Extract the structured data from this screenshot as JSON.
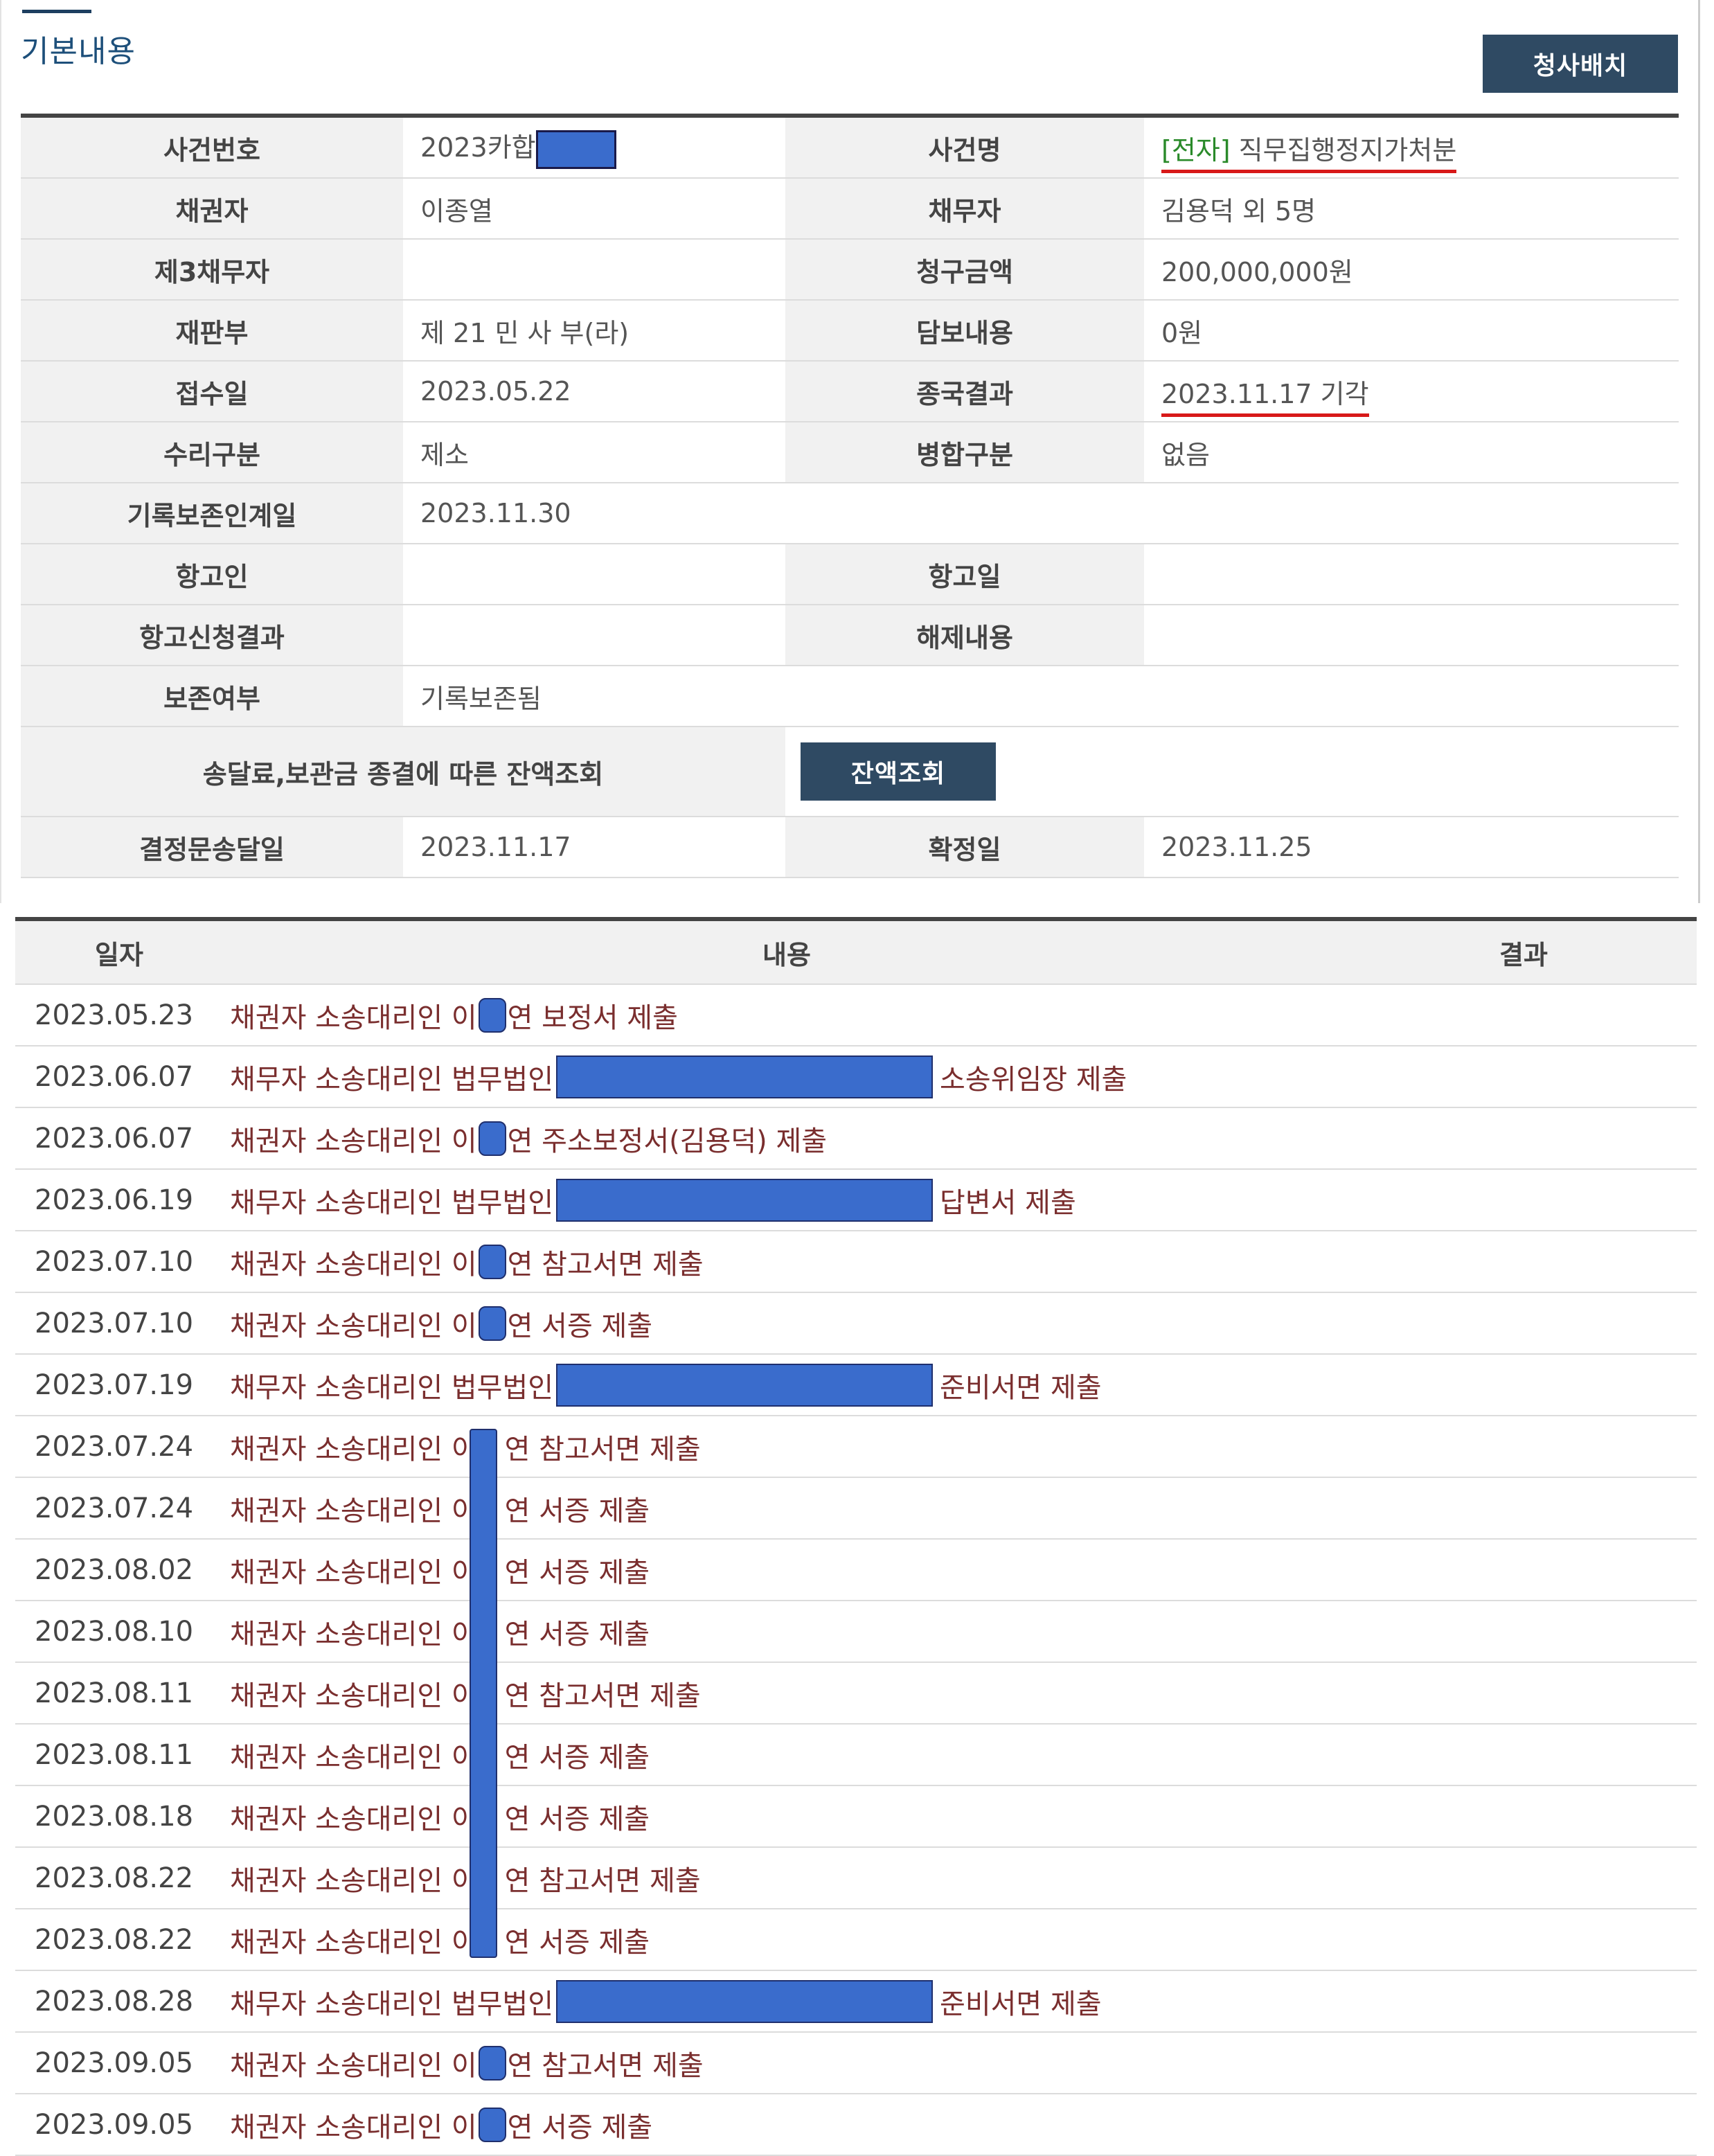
{
  "header": {
    "title": "기본내용",
    "court_button": "청사배치"
  },
  "case_info": {
    "case_number_label": "사건번호",
    "case_number_prefix": "2023카합",
    "case_name_label": "사건명",
    "case_name_tag": "[전자]",
    "case_name": "직무집행정지가처분",
    "creditor_label": "채권자",
    "creditor": "이종열",
    "debtor_label": "채무자",
    "debtor": "김용덕 외 5명",
    "third_debtor_label": "제3채무자",
    "third_debtor": "",
    "claim_amount_label": "청구금액",
    "claim_amount": "200,000,000원",
    "division_label": "재판부",
    "division": "제 21 민 사 부(라)",
    "security_label": "담보내용",
    "security": "0원",
    "received_label": "접수일",
    "received": "2023.05.22",
    "result_label": "종국결과",
    "result": "2023.11.17 기각",
    "acceptance_label": "수리구분",
    "acceptance": "제소",
    "merge_label": "병합구분",
    "merge": "없음",
    "record_transfer_label": "기록보존인계일",
    "record_transfer": "2023.11.30",
    "appellant_label": "항고인",
    "appellant": "",
    "appeal_date_label": "항고일",
    "appeal_date": "",
    "appeal_result_label": "항고신청결과",
    "appeal_result": "",
    "release_label": "해제내용",
    "release": "",
    "preservation_label": "보존여부",
    "preservation": "기록보존됨",
    "balance_label": "송달료,보관금 종결에 따른 잔액조회",
    "balance_button": "잔액조회",
    "decision_served_label": "결정문송달일",
    "decision_served": "2023.11.17",
    "finalized_label": "확정일",
    "finalized": "2023.11.25"
  },
  "history": {
    "headers": {
      "date": "일자",
      "content": "내용",
      "result": "결과"
    },
    "rows": [
      {
        "date": "2023.05.23",
        "pre": "채권자 소송대리인 이",
        "redact": "small",
        "post": "연 보정서 제출",
        "result": ""
      },
      {
        "date": "2023.06.07",
        "pre": "채무자 소송대리인 법무법인",
        "redact": "big",
        "post": "소송위임장 제출",
        "result": ""
      },
      {
        "date": "2023.06.07",
        "pre": "채권자 소송대리인 이",
        "redact": "small",
        "post": "연 주소보정서(김용덕) 제출",
        "result": ""
      },
      {
        "date": "2023.06.19",
        "pre": "채무자 소송대리인 법무법인",
        "redact": "big",
        "post": "답변서 제출",
        "result": ""
      },
      {
        "date": "2023.07.10",
        "pre": "채권자 소송대리인 이",
        "redact": "small",
        "post": "연 참고서면 제출",
        "result": ""
      },
      {
        "date": "2023.07.10",
        "pre": "채권자 소송대리인 이",
        "redact": "small",
        "post": "연 서증 제출",
        "result": ""
      },
      {
        "date": "2023.07.19",
        "pre": "채무자 소송대리인 법무법인",
        "redact": "big",
        "post": "준비서면 제출",
        "result": ""
      },
      {
        "date": "2023.07.24",
        "pre": "채권자 소송대리인 이",
        "redact": "gap",
        "post": "연 참고서면 제출",
        "result": ""
      },
      {
        "date": "2023.07.24",
        "pre": "채권자 소송대리인 이",
        "redact": "gap",
        "post": "연 서증 제출",
        "result": ""
      },
      {
        "date": "2023.08.02",
        "pre": "채권자 소송대리인 이",
        "redact": "gap",
        "post": "연 서증 제출",
        "result": ""
      },
      {
        "date": "2023.08.10",
        "pre": "채권자 소송대리인 이",
        "redact": "gap",
        "post": "연 서증 제출",
        "result": ""
      },
      {
        "date": "2023.08.11",
        "pre": "채권자 소송대리인 이",
        "redact": "gap",
        "post": "연 참고서면 제출",
        "result": ""
      },
      {
        "date": "2023.08.11",
        "pre": "채권자 소송대리인 이",
        "redact": "gap",
        "post": "연 서증 제출",
        "result": ""
      },
      {
        "date": "2023.08.18",
        "pre": "채권자 소송대리인 이",
        "redact": "gap",
        "post": "연 서증 제출",
        "result": ""
      },
      {
        "date": "2023.08.22",
        "pre": "채권자 소송대리인 이",
        "redact": "gap",
        "post": "연 참고서면 제출",
        "result": ""
      },
      {
        "date": "2023.08.22",
        "pre": "채권자 소송대리인 이",
        "redact": "gap",
        "post": "연 서증 제출",
        "result": ""
      },
      {
        "date": "2023.08.28",
        "pre": "채무자 소송대리인 법무법인",
        "redact": "big",
        "post": "준비서면 제출",
        "result": ""
      },
      {
        "date": "2023.09.05",
        "pre": "채권자 소송대리인 이",
        "redact": "small",
        "post": "연 참고서면 제출",
        "result": ""
      },
      {
        "date": "2023.09.05",
        "pre": "채권자 소송대리인 이",
        "redact": "small",
        "post": "연 서증 제출",
        "result": ""
      }
    ]
  },
  "colors": {
    "button_bg": "#2f4a63",
    "redaction": "#3a6ccc",
    "underline": "#d81919",
    "tag": "#2a8a2a",
    "content_text": "#7a2e2e"
  }
}
